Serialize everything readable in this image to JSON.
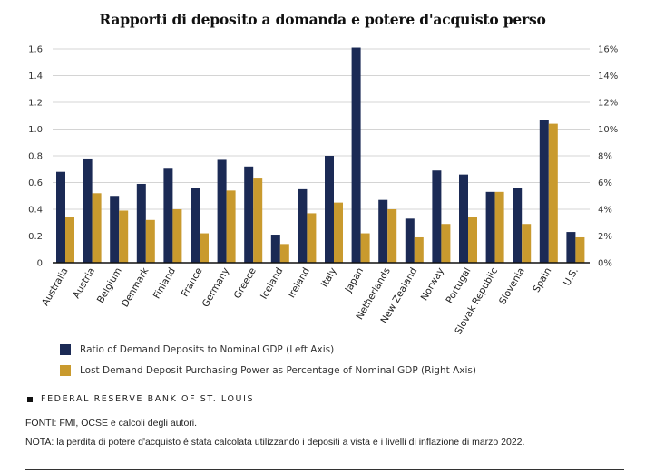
{
  "chart_data": {
    "type": "bar",
    "title": "Rapporti di deposito a domanda e potere d'acquisto perso",
    "xlabel": "",
    "ylabel_left": "",
    "ylabel_right": "",
    "categories": [
      "Australia",
      "Austria",
      "Belgium",
      "Denmark",
      "Finland",
      "France",
      "Germany",
      "Greece",
      "Iceland",
      "Ireland",
      "Italy",
      "Japan",
      "Netherlands",
      "New Zealand",
      "Norway",
      "Portugal",
      "Slovak Republic",
      "Slovenia",
      "Spain",
      "U.S."
    ],
    "series": [
      {
        "name": "Ratio of Demand Deposits to Nominal GDP (Left Axis)",
        "axis": "left",
        "color": "#1b2a55",
        "values": [
          0.68,
          0.78,
          0.5,
          0.59,
          0.71,
          0.56,
          0.77,
          0.72,
          0.21,
          0.55,
          0.8,
          1.61,
          0.47,
          0.33,
          0.69,
          0.66,
          0.53,
          0.56,
          1.07,
          0.23
        ]
      },
      {
        "name": "Lost Demand Deposit Purchasing Power as Percentage of Nominal GDP (Right Axis)",
        "axis": "right",
        "color": "#c99a2e",
        "values": [
          3.4,
          5.2,
          3.9,
          3.2,
          4.0,
          2.2,
          5.4,
          6.3,
          1.4,
          3.7,
          4.5,
          2.2,
          4.0,
          1.9,
          2.9,
          3.4,
          5.3,
          2.9,
          10.4,
          1.9
        ]
      }
    ],
    "left_axis": {
      "ylim": [
        0,
        1.6
      ],
      "ticks": [
        "0",
        "0.2",
        "0.4",
        "0.6",
        "0.8",
        "1.0",
        "1.2",
        "1.4",
        "1.6"
      ]
    },
    "right_axis": {
      "ylim": [
        0,
        16
      ],
      "ticks": [
        "0%",
        "2%",
        "4%",
        "6%",
        "8%",
        "10%",
        "12%",
        "14%",
        "16%"
      ]
    },
    "grid": true,
    "legend_position": "bottom-left"
  },
  "legend": {
    "items": [
      {
        "label": "Ratio of Demand Deposits to Nominal GDP (Left Axis)",
        "color": "#1b2a55"
      },
      {
        "label": "Lost Demand Deposit Purchasing Power as Percentage of Nominal GDP (Right Axis)",
        "color": "#c99a2e"
      }
    ]
  },
  "branding": {
    "text": "FEDERAL RESERVE BANK OF ST. LOUIS"
  },
  "footer": {
    "sources": "FONTI: FMI, OCSE e calcoli degli autori.",
    "note": "NOTA: la perdita di potere d'acquisto è stata calcolata utilizzando i depositi a vista e i livelli di inflazione di marzo 2022."
  }
}
